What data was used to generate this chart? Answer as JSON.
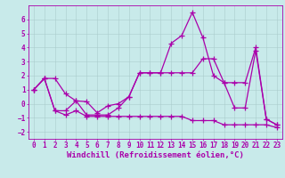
{
  "background_color": "#c8eaea",
  "grid_color": "#aacccc",
  "line_color": "#aa00aa",
  "marker": "+",
  "markersize": 4,
  "linewidth": 0.9,
  "markeredgewidth": 0.9,
  "xlabel": "Windchill (Refroidissement éolien,°C)",
  "xlabel_fontsize": 6.5,
  "tick_fontsize": 5.5,
  "xlim": [
    -0.5,
    23.5
  ],
  "ylim": [
    -2.5,
    7.0
  ],
  "yticks": [
    -2,
    -1,
    0,
    1,
    2,
    3,
    4,
    5,
    6
  ],
  "xticks": [
    0,
    1,
    2,
    3,
    4,
    5,
    6,
    7,
    8,
    9,
    10,
    11,
    12,
    13,
    14,
    15,
    16,
    17,
    18,
    19,
    20,
    21,
    22,
    23
  ],
  "series": [
    {
      "x": [
        0,
        1,
        2,
        3,
        4,
        5,
        6,
        7,
        8,
        9,
        10,
        11,
        12,
        13,
        14,
        15,
        16,
        17,
        18,
        19,
        20,
        21,
        22,
        23
      ],
      "y": [
        1.0,
        1.8,
        1.8,
        0.7,
        0.2,
        0.15,
        -0.65,
        -0.15,
        0.0,
        0.5,
        2.2,
        2.2,
        2.2,
        4.3,
        4.85,
        6.5,
        4.7,
        2.0,
        1.5,
        1.5,
        1.5,
        4.0,
        -1.1,
        -1.5
      ]
    },
    {
      "x": [
        0,
        1,
        2,
        3,
        4,
        5,
        6,
        7,
        8,
        9,
        10,
        11,
        12,
        13,
        14,
        15,
        16,
        17,
        18,
        19,
        20,
        21,
        22,
        23
      ],
      "y": [
        1.0,
        1.8,
        -0.5,
        -0.5,
        0.2,
        -0.8,
        -0.8,
        -0.8,
        -0.3,
        0.5,
        2.2,
        2.2,
        2.2,
        2.2,
        2.2,
        2.2,
        3.2,
        3.2,
        1.5,
        -0.3,
        -0.3,
        3.8,
        -1.1,
        -1.5
      ]
    },
    {
      "x": [
        0,
        1,
        2,
        3,
        4,
        5,
        6,
        7,
        8,
        9,
        10,
        11,
        12,
        13,
        14,
        15,
        16,
        17,
        18,
        19,
        20,
        21,
        22,
        23
      ],
      "y": [
        1.0,
        1.8,
        -0.5,
        -0.8,
        -0.5,
        -0.9,
        -0.9,
        -0.9,
        -0.9,
        -0.9,
        -0.9,
        -0.9,
        -0.9,
        -0.9,
        -0.9,
        -1.2,
        -1.2,
        -1.2,
        -1.5,
        -1.5,
        -1.5,
        -1.5,
        -1.5,
        -1.7
      ]
    }
  ]
}
